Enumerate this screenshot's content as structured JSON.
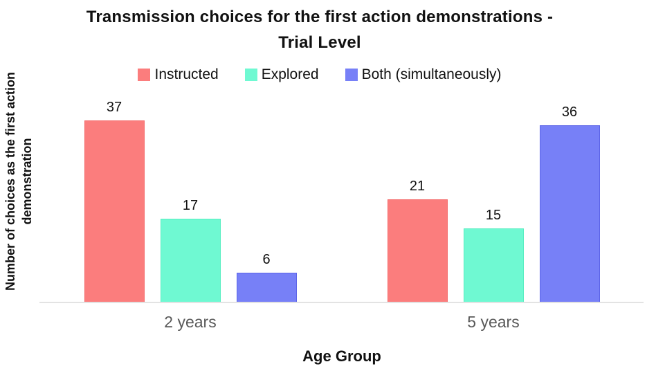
{
  "title": {
    "line1": "Transmission choices for the first action demonstrations -",
    "line2": "Trial Level"
  },
  "legend": [
    {
      "label": "Instructed",
      "color": "#fb7d7d",
      "border": "#f46b6b"
    },
    {
      "label": "Explored",
      "color": "#6ff9d2",
      "border": "#55eec0"
    },
    {
      "label": "Both (simultaneously)",
      "color": "#7780f7",
      "border": "#5c64e8"
    }
  ],
  "y_axis_label": {
    "line1": "Number of choices as the first action",
    "line2": "demonstration"
  },
  "x_axis_label": "Age Group",
  "colors": {
    "axis_line": "#e3e3e3",
    "tick_text": "#595959",
    "text": "#111111",
    "background": "#ffffff"
  },
  "chart_data": {
    "type": "bar",
    "title": "Transmission choices for the first action demonstrations - Trial Level",
    "categories": [
      "2 years",
      "5 years"
    ],
    "series": [
      {
        "name": "Instructed",
        "color": "#fb7d7d",
        "values": [
          37,
          21
        ]
      },
      {
        "name": "Explored",
        "color": "#6ff9d2",
        "values": [
          17,
          15
        ]
      },
      {
        "name": "Both (simultaneously)",
        "color": "#7780f7",
        "values": [
          6,
          36
        ]
      }
    ],
    "xlabel": "Age Group",
    "ylabel": "Number of choices as the first action demonstration",
    "ylim": [
      0,
      40
    ],
    "grid": false,
    "legend_position": "top",
    "bar_value_labels": true
  }
}
